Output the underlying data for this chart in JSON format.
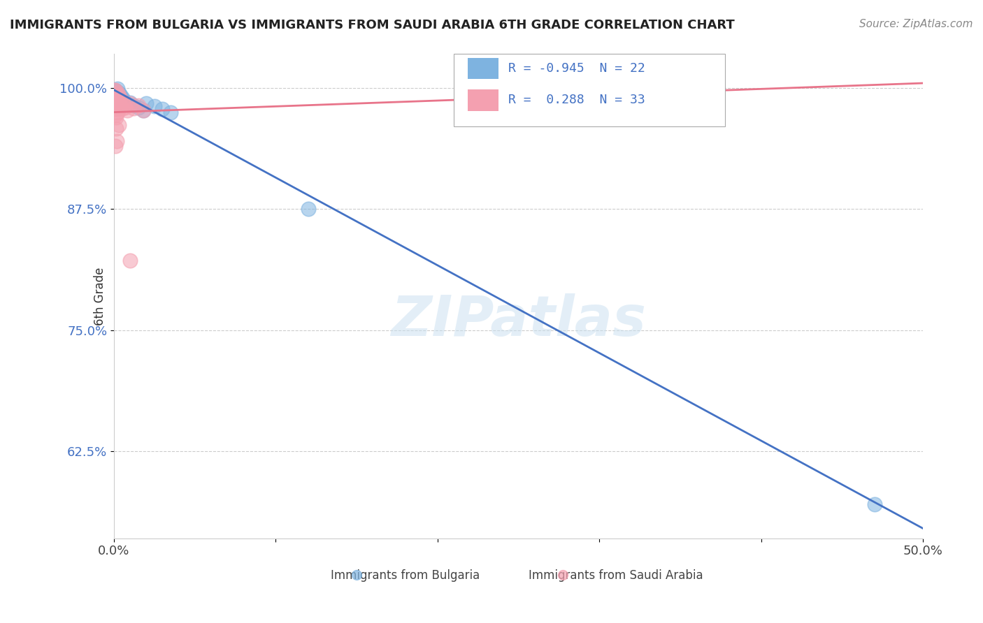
{
  "title": "IMMIGRANTS FROM BULGARIA VS IMMIGRANTS FROM SAUDI ARABIA 6TH GRADE CORRELATION CHART",
  "source": "Source: ZipAtlas.com",
  "ylabel_label": "6th Grade",
  "ytick_labels": [
    "62.5%",
    "75.0%",
    "87.5%",
    "100.0%"
  ],
  "ytick_values": [
    0.625,
    0.75,
    0.875,
    1.0
  ],
  "xlim": [
    0.0,
    0.5
  ],
  "ylim": [
    0.535,
    1.035
  ],
  "legend_entries": [
    {
      "label": "Immigrants from Bulgaria",
      "color": "#7eb3e0",
      "R": "-0.945",
      "N": "22"
    },
    {
      "label": "Immigrants from Saudi Arabia",
      "color": "#f4a0b0",
      "R": " 0.288",
      "N": "33"
    }
  ],
  "bulgaria_dots": [
    [
      0.0005,
      0.998
    ],
    [
      0.001,
      0.993
    ],
    [
      0.0015,
      0.997
    ],
    [
      0.002,
      0.999
    ],
    [
      0.002,
      0.991
    ],
    [
      0.003,
      0.995
    ],
    [
      0.003,
      0.988
    ],
    [
      0.004,
      0.993
    ],
    [
      0.005,
      0.99
    ],
    [
      0.006,
      0.987
    ],
    [
      0.007,
      0.985
    ],
    [
      0.008,
      0.983
    ],
    [
      0.01,
      0.985
    ],
    [
      0.012,
      0.982
    ],
    [
      0.015,
      0.98
    ],
    [
      0.018,
      0.977
    ],
    [
      0.02,
      0.984
    ],
    [
      0.025,
      0.981
    ],
    [
      0.03,
      0.978
    ],
    [
      0.035,
      0.975
    ],
    [
      0.12,
      0.875
    ],
    [
      0.47,
      0.57
    ]
  ],
  "saudi_dots": [
    [
      0.0002,
      0.998
    ],
    [
      0.0004,
      0.993
    ],
    [
      0.0006,
      0.987
    ],
    [
      0.0008,
      0.981
    ],
    [
      0.001,
      0.998
    ],
    [
      0.001,
      0.991
    ],
    [
      0.001,
      0.985
    ],
    [
      0.001,
      0.978
    ],
    [
      0.001,
      0.972
    ],
    [
      0.002,
      0.995
    ],
    [
      0.002,
      0.988
    ],
    [
      0.002,
      0.981
    ],
    [
      0.002,
      0.975
    ],
    [
      0.003,
      0.992
    ],
    [
      0.003,
      0.985
    ],
    [
      0.003,
      0.978
    ],
    [
      0.004,
      0.989
    ],
    [
      0.004,
      0.982
    ],
    [
      0.005,
      0.986
    ],
    [
      0.005,
      0.979
    ],
    [
      0.006,
      0.983
    ],
    [
      0.007,
      0.98
    ],
    [
      0.008,
      0.977
    ],
    [
      0.01,
      0.984
    ],
    [
      0.012,
      0.979
    ],
    [
      0.015,
      0.982
    ],
    [
      0.018,
      0.977
    ],
    [
      0.01,
      0.822
    ],
    [
      0.0015,
      0.958
    ],
    [
      0.003,
      0.962
    ],
    [
      0.0012,
      0.97
    ],
    [
      0.0018,
      0.945
    ],
    [
      0.0008,
      0.94
    ]
  ],
  "bulgaria_line_x": [
    0.0,
    0.5
  ],
  "bulgaria_line_y": [
    0.998,
    0.545
  ],
  "saudi_line_x": [
    0.0,
    0.5
  ],
  "saudi_line_y": [
    0.975,
    1.005
  ],
  "blue_color": "#4472C4",
  "pink_color": "#E8748A",
  "blue_dot_color": "#7eb3e0",
  "pink_dot_color": "#f4a0b0",
  "watermark": "ZIPatlas",
  "background_color": "#ffffff",
  "grid_color": "#cccccc",
  "xtick_positions": [
    0.0,
    0.1,
    0.2,
    0.3,
    0.4,
    0.5
  ],
  "xtick_labels": [
    "0.0%",
    "",
    "",
    "",
    "",
    "50.0%"
  ]
}
